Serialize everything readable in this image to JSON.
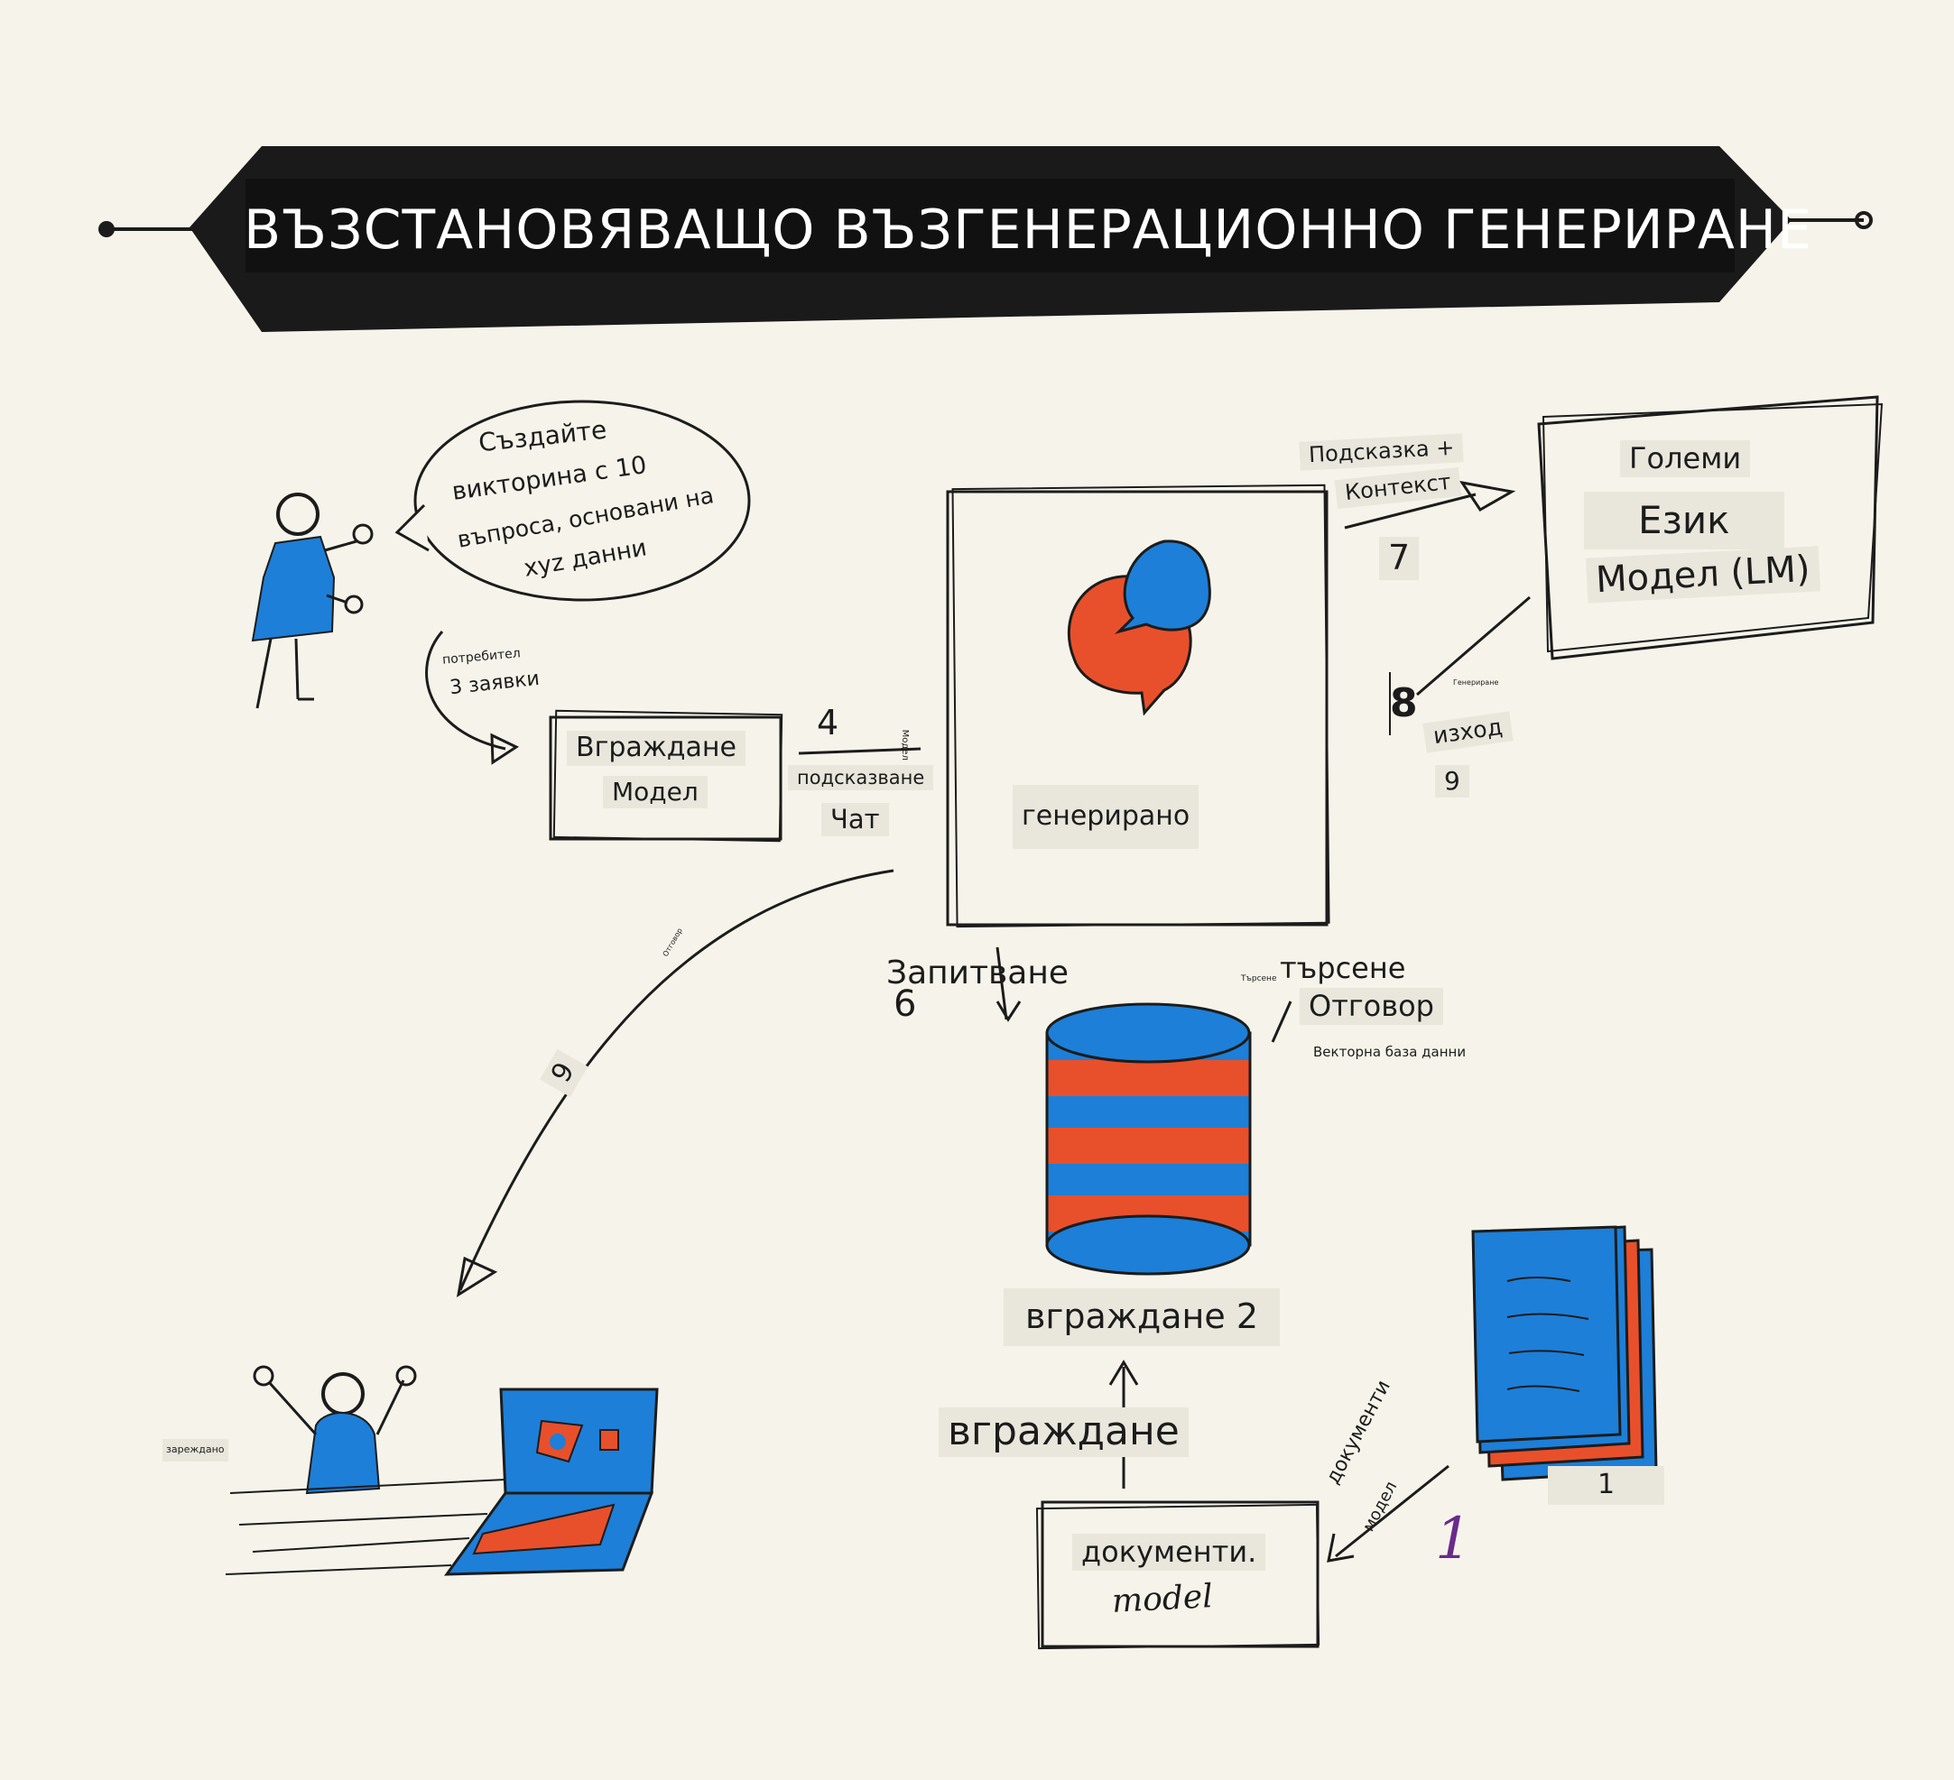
{
  "title": "ВЪЗСТАНОВЯВАЩО ВЪЗГЕНЕРАЦИОННО ГЕНЕРИРАНЕ",
  "speech_bubble": {
    "line1": "Създайте",
    "line2": "викторина с 10",
    "line3": "въпроса, основани на",
    "line4": "xyz данни"
  },
  "user_query": {
    "small": "потребител",
    "main": "3 заявки"
  },
  "embedding_model_box": {
    "line1": "Вграждане",
    "line2": "Модел"
  },
  "step4": {
    "number": "4",
    "tiny": "Модел",
    "line1": "подсказване",
    "line2": "Чат"
  },
  "center_box": {
    "label": "генерирано"
  },
  "prompt_context": {
    "line1": "Подсказка +",
    "line2": "Контекст",
    "number": "7"
  },
  "llm_box": {
    "line1": "Големи",
    "line2": "Език",
    "line3": "Модел (LM)"
  },
  "step8": {
    "number": "8",
    "tiny": "Генериране",
    "label": "изход",
    "number2": "9"
  },
  "query6": {
    "label": "Запитване",
    "number": "6"
  },
  "search": {
    "tiny": "Търсене",
    "line1": "търсене",
    "line2": "Отговор",
    "small": "Векторна база данни"
  },
  "return_arrow": {
    "tiny": "Отговор",
    "number": "9"
  },
  "database": {
    "label": "вграждане 2"
  },
  "embedding_label": "вграждане",
  "documents_box": {
    "line1": "документи.",
    "line2": "model"
  },
  "documents_arrow": {
    "line1": "документи",
    "line2": "модел"
  },
  "doc_stack": {
    "number": "1",
    "purple_number": "1"
  },
  "loading": {
    "label": "зареждано"
  },
  "colors": {
    "blue": "#1d7fd8",
    "red": "#e8502b",
    "ink": "#1c1c1c",
    "background": "#f6f4ea",
    "purple": "#6a2a8c"
  }
}
